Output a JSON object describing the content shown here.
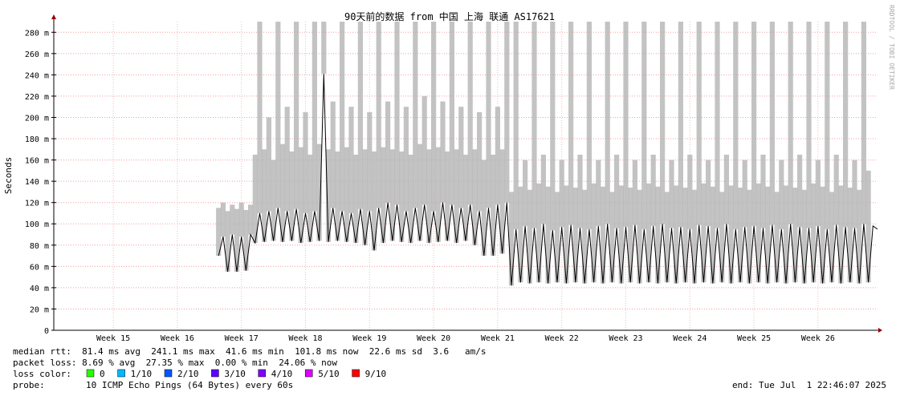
{
  "chart_data": {
    "type": "line",
    "title": "90天前的数据 from 中国 上海 联通 AS17621",
    "y_label": "Seconds",
    "watermark": "RRDTOOL / TOBI OETIKER",
    "xlim": [
      0,
      90
    ],
    "ylim": [
      0,
      290
    ],
    "yticks": [
      0,
      {
        "value": 20,
        "label": "20 m"
      },
      {
        "value": 40,
        "label": "40 m"
      },
      {
        "value": 60,
        "label": "60 m"
      },
      {
        "value": 80,
        "label": "80 m"
      },
      {
        "value": 100,
        "label": "100 m"
      },
      {
        "value": 120,
        "label": "120 m"
      },
      {
        "value": 140,
        "label": "140 m"
      },
      {
        "value": 160,
        "label": "160 m"
      },
      {
        "value": 180,
        "label": "180 m"
      },
      {
        "value": 200,
        "label": "200 m"
      },
      {
        "value": 220,
        "label": "220 m"
      },
      {
        "value": 240,
        "label": "240 m"
      },
      {
        "value": 260,
        "label": "260 m"
      },
      {
        "value": 280,
        "label": "280 m"
      }
    ],
    "xticks": [
      {
        "value": 6.5,
        "label": "Week 15"
      },
      {
        "value": 13.5,
        "label": "Week 16"
      },
      {
        "value": 20.5,
        "label": "Week 17"
      },
      {
        "value": 27.5,
        "label": "Week 18"
      },
      {
        "value": 34.5,
        "label": "Week 19"
      },
      {
        "value": 41.5,
        "label": "Week 20"
      },
      {
        "value": 48.5,
        "label": "Week 21"
      },
      {
        "value": 55.5,
        "label": "Week 22"
      },
      {
        "value": 62.5,
        "label": "Week 23"
      },
      {
        "value": 69.5,
        "label": "Week 24"
      },
      {
        "value": 76.5,
        "label": "Week 25"
      },
      {
        "value": 83.5,
        "label": "Week 26"
      }
    ],
    "grid": true,
    "line_color": "#000000",
    "smoke_color": "#b4b4b4",
    "x": [
      18,
      18.5,
      19,
      19.5,
      20,
      20.5,
      21,
      21.5,
      22,
      22.5,
      23,
      23.5,
      24,
      24.5,
      25,
      25.5,
      26,
      26.5,
      27,
      27.5,
      28,
      28.5,
      29,
      29.5,
      30,
      30.5,
      31,
      31.5,
      32,
      32.5,
      33,
      33.5,
      34,
      34.5,
      35,
      35.5,
      36,
      36.5,
      37,
      37.5,
      38,
      38.5,
      39,
      39.5,
      40,
      40.5,
      41,
      41.5,
      42,
      42.5,
      43,
      43.5,
      44,
      44.5,
      45,
      45.5,
      46,
      46.5,
      47,
      47.5,
      48,
      48.5,
      49,
      49.5,
      50,
      50.5,
      51,
      51.5,
      52,
      52.5,
      53,
      53.5,
      54,
      54.5,
      55,
      55.5,
      56,
      56.5,
      57,
      57.5,
      58,
      58.5,
      59,
      59.5,
      60,
      60.5,
      61,
      61.5,
      62,
      62.5,
      63,
      63.5,
      64,
      64.5,
      65,
      65.5,
      66,
      66.5,
      67,
      67.5,
      68,
      68.5,
      69,
      69.5,
      70,
      70.5,
      71,
      71.5,
      72,
      72.5,
      73,
      73.5,
      74,
      74.5,
      75,
      75.5,
      76,
      76.5,
      77,
      77.5,
      78,
      78.5,
      79,
      79.5,
      80,
      80.5,
      81,
      81.5,
      82,
      82.5,
      83,
      83.5,
      84,
      84.5,
      85,
      85.5,
      86,
      86.5,
      87,
      87.5,
      88,
      88.5,
      89,
      89.5,
      90
    ],
    "median": [
      70,
      88,
      55,
      90,
      55,
      88,
      56,
      90,
      82,
      110,
      83,
      112,
      84,
      115,
      83,
      112,
      84,
      114,
      82,
      110,
      83,
      112,
      84,
      241,
      83,
      115,
      84,
      112,
      83,
      110,
      82,
      114,
      80,
      112,
      75,
      115,
      82,
      120,
      84,
      118,
      83,
      112,
      82,
      115,
      84,
      118,
      82,
      112,
      83,
      120,
      84,
      118,
      82,
      115,
      84,
      118,
      80,
      112,
      70,
      115,
      70,
      118,
      72,
      120,
      42,
      95,
      45,
      98,
      44,
      96,
      45,
      100,
      44,
      94,
      45,
      97,
      44,
      99,
      45,
      96,
      44,
      95,
      45,
      98,
      44,
      100,
      45,
      96,
      44,
      97,
      45,
      99,
      44,
      95,
      45,
      98,
      44,
      100,
      45,
      96,
      44,
      97,
      45,
      95,
      44,
      99,
      45,
      98,
      44,
      96,
      45,
      100,
      44,
      95,
      45,
      97,
      44,
      98,
      45,
      96,
      44,
      99,
      45,
      95,
      44,
      100,
      45,
      97,
      44,
      96,
      45,
      98,
      44,
      95,
      45,
      99,
      44,
      97,
      45,
      96,
      44,
      100,
      45,
      98,
      95
    ],
    "smoke_high": [
      115,
      120,
      112,
      118,
      114,
      120,
      113,
      118,
      165,
      290,
      170,
      200,
      160,
      290,
      175,
      210,
      168,
      290,
      172,
      205,
      165,
      290,
      175,
      290,
      170,
      215,
      168,
      290,
      172,
      210,
      165,
      290,
      170,
      205,
      168,
      290,
      172,
      215,
      170,
      290,
      168,
      210,
      165,
      290,
      175,
      220,
      170,
      290,
      172,
      215,
      168,
      290,
      170,
      210,
      165,
      290,
      170,
      205,
      160,
      290,
      165,
      210,
      170,
      290,
      130,
      290,
      135,
      160,
      132,
      290,
      138,
      165,
      135,
      290,
      130,
      160,
      136,
      290,
      134,
      165,
      132,
      290,
      138,
      160,
      135,
      290,
      130,
      165,
      136,
      290,
      134,
      160,
      132,
      290,
      138,
      165,
      135,
      290,
      130,
      160,
      136,
      290,
      134,
      165,
      132,
      290,
      138,
      160,
      135,
      290,
      130,
      165,
      136,
      290,
      134,
      160,
      132,
      290,
      138,
      165,
      135,
      290,
      130,
      160,
      136,
      290,
      134,
      165,
      132,
      290,
      138,
      160,
      135,
      290,
      130,
      165,
      136,
      290,
      134,
      160,
      132,
      290,
      150
    ]
  },
  "footer": {
    "rows": [
      [
        "median rtt:",
        "81.4 ms avg",
        "241.1 ms max",
        "41.6 ms min",
        "101.8 ms now",
        "22.6 ms sd",
        "3.6",
        "am/s"
      ],
      [
        "packet loss:",
        "8.69 % avg",
        "27.35 % max",
        "0.00 % min",
        "24.06 % now"
      ]
    ],
    "loss_color_label": "loss color:",
    "loss_colors": [
      {
        "label": "0",
        "color": "#26ff00"
      },
      {
        "label": "1/10",
        "color": "#00b8ff"
      },
      {
        "label": "2/10",
        "color": "#0059ff"
      },
      {
        "label": "3/10",
        "color": "#5e00ff"
      },
      {
        "label": "4/10",
        "color": "#7e00ff"
      },
      {
        "label": "5/10",
        "color": "#dd00ff"
      },
      {
        "label": "9/10",
        "color": "#ff0000"
      }
    ],
    "probe_label": "probe:",
    "probe": "10 ICMP Echo Pings (64 Bytes) every 60s",
    "end": "end: Tue Jul  1 22:46:07 2025"
  }
}
